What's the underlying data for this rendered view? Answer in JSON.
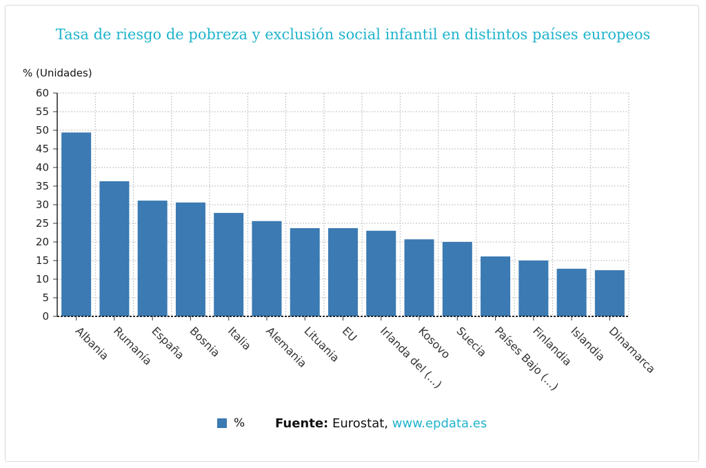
{
  "title": "Tasa de riesgo de pobreza y exclusión social infantil en distintos países europeos",
  "legend": {
    "label": "%",
    "color": "#3b7ab2"
  },
  "source": {
    "prefix": "Fuente:",
    "text": " Eurostat, ",
    "link": "www.epdata.es"
  },
  "chart_data": {
    "type": "bar",
    "title": "Tasa de riesgo de pobreza y exclusión social infantil en distintos países europeos",
    "ylabel": "% (Unidades)",
    "xlabel": "",
    "ylim": [
      0,
      60
    ],
    "yticks": [
      0,
      5,
      10,
      15,
      20,
      25,
      30,
      35,
      40,
      45,
      50,
      55,
      60
    ],
    "grid": true,
    "legend_position": "bottom",
    "categories": [
      "Albania",
      "Rumanía",
      "España",
      "Bosnia",
      "Italia",
      "Alemania",
      "Lituania",
      "EU",
      "Irlanda del (...)",
      "Kosovo",
      "Suecia",
      "Países Bajo (...)",
      "Finlandia",
      "Islandia",
      "Dinamarca"
    ],
    "series": [
      {
        "name": "%",
        "values": [
          49.4,
          36.3,
          31.1,
          30.6,
          27.8,
          25.6,
          23.7,
          23.7,
          23.0,
          20.7,
          20.0,
          16.1,
          15.0,
          12.8,
          12.4
        ]
      }
    ]
  }
}
